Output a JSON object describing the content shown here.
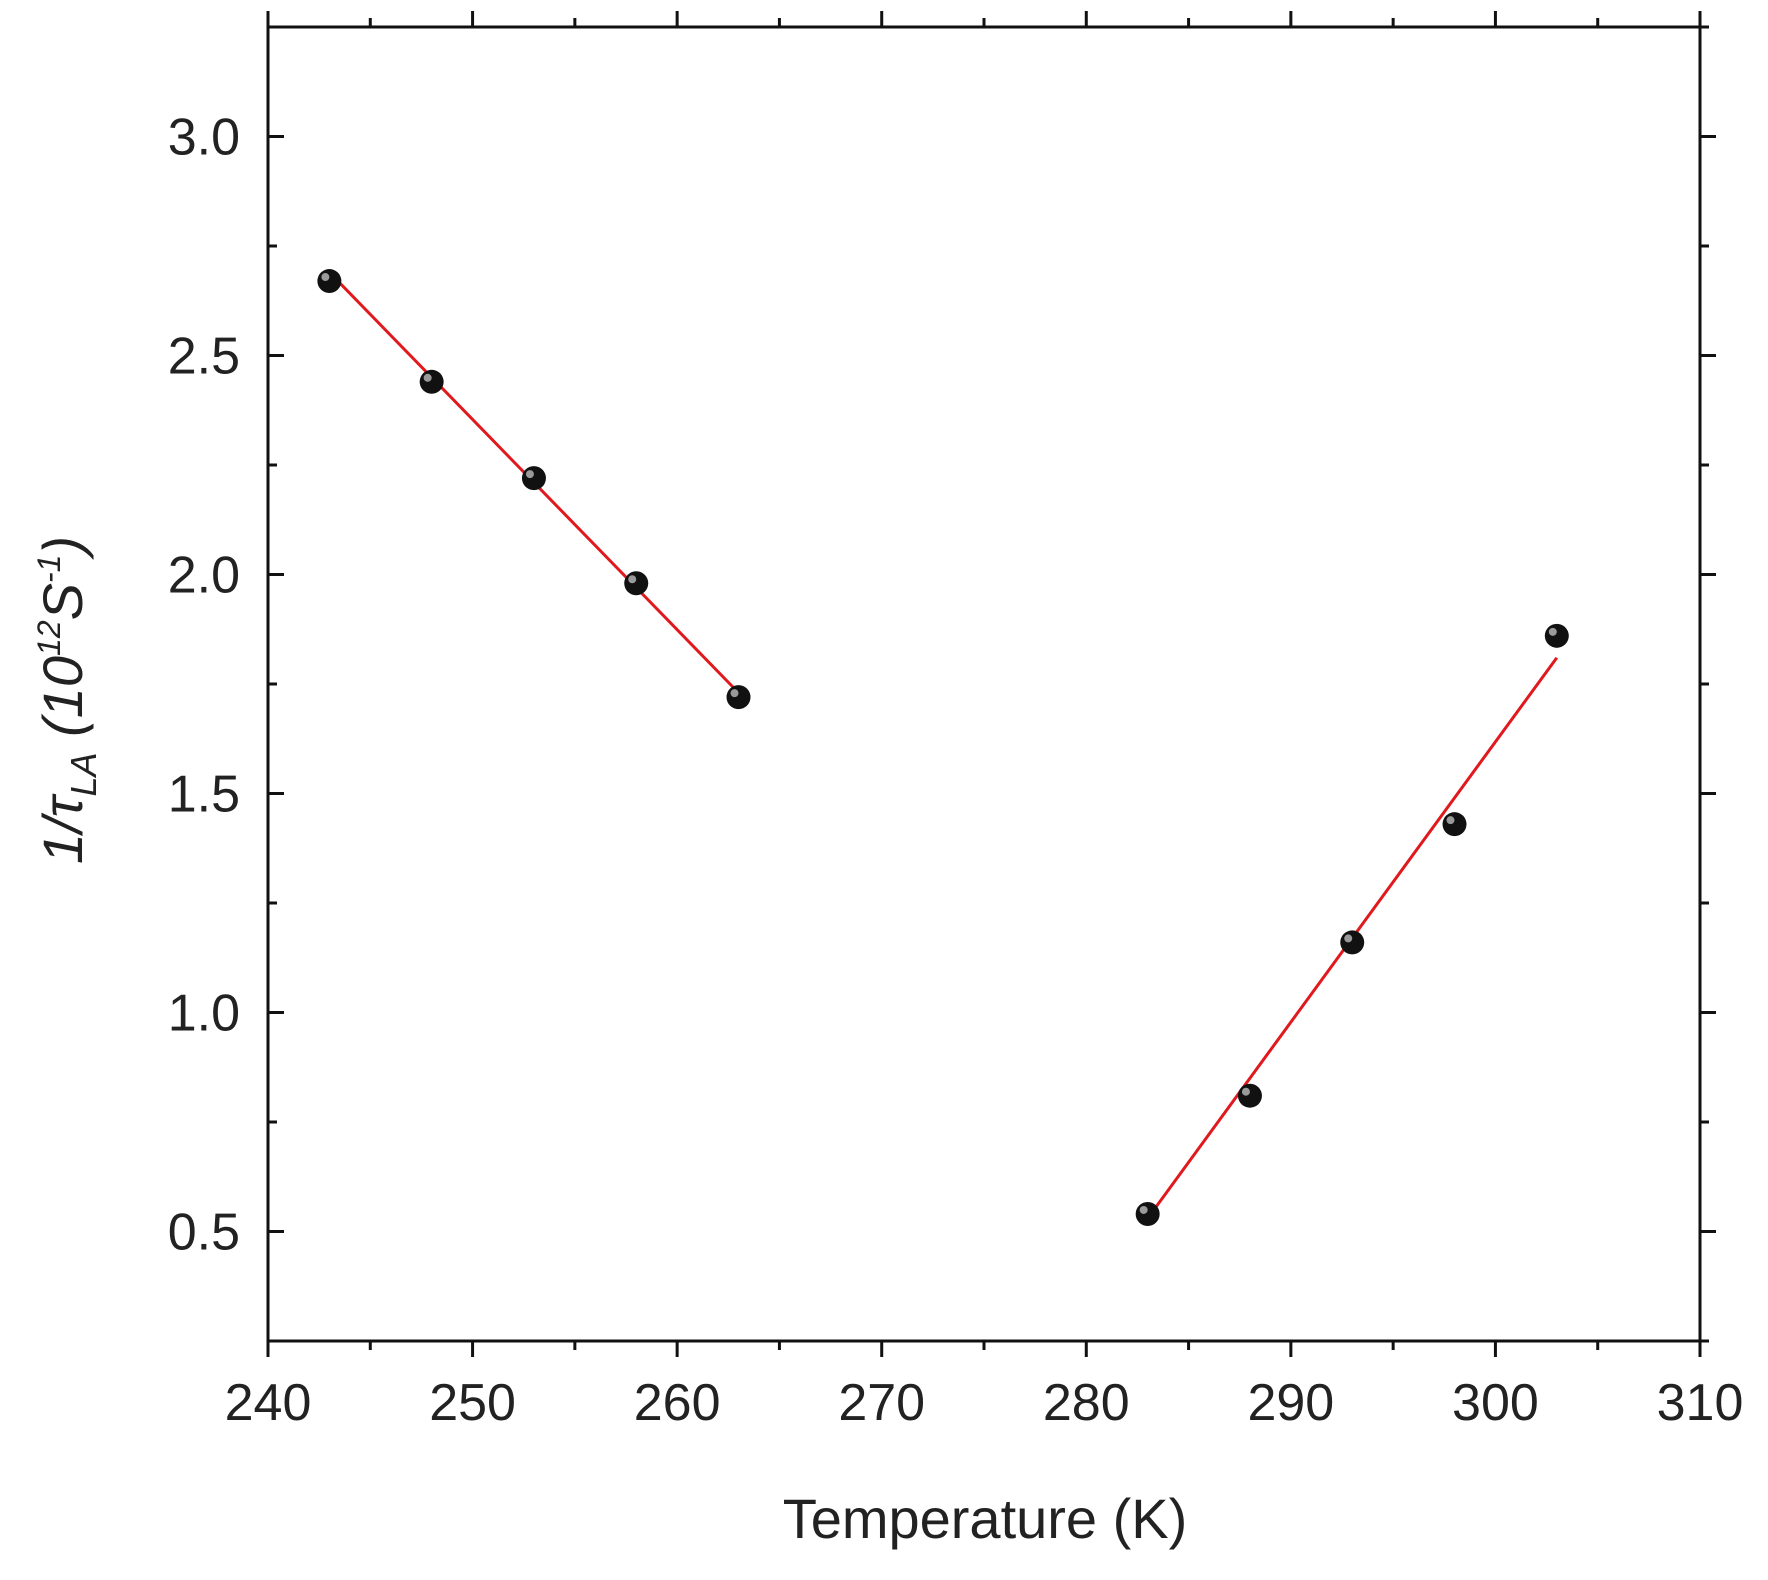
{
  "chart_data": {
    "type": "scatter",
    "title": "",
    "xlabel": "Temperature (K)",
    "ylabel": {
      "prefix": "1/τ",
      "subscript": "LA",
      "unit_open": " (10",
      "unit_exp": "12",
      "unit_mid": "S",
      "unit_exp2": "-1",
      "unit_close": ")"
    },
    "xlim": [
      240,
      310
    ],
    "ylim": [
      0.25,
      3.25
    ],
    "x_ticks": [
      240,
      250,
      260,
      270,
      280,
      290,
      300,
      310
    ],
    "x_tick_labels": [
      "240",
      "250",
      "260",
      "270",
      "280",
      "290",
      "300",
      "310"
    ],
    "y_ticks": [
      0.5,
      1.0,
      1.5,
      2.0,
      2.5,
      3.0
    ],
    "y_tick_labels": [
      "0.5",
      "1.0",
      "1.5",
      "2.0",
      "2.5",
      "3.0"
    ],
    "grid": false,
    "series": [
      {
        "x": [
          243,
          248,
          253,
          258,
          263
        ],
        "y": [
          2.67,
          2.44,
          2.22,
          1.98,
          1.72
        ],
        "marker_color": "#111111"
      },
      {
        "x": [
          283,
          288,
          293,
          298,
          303
        ],
        "y": [
          0.54,
          0.81,
          1.16,
          1.43,
          1.86
        ],
        "marker_color": "#111111"
      }
    ],
    "fit_lines": [
      {
        "x": [
          243,
          263
        ],
        "y": [
          2.69,
          1.73
        ],
        "color": "#e0191e"
      },
      {
        "x": [
          283,
          303
        ],
        "y": [
          0.53,
          1.81
        ],
        "color": "#e0191e"
      }
    ]
  }
}
